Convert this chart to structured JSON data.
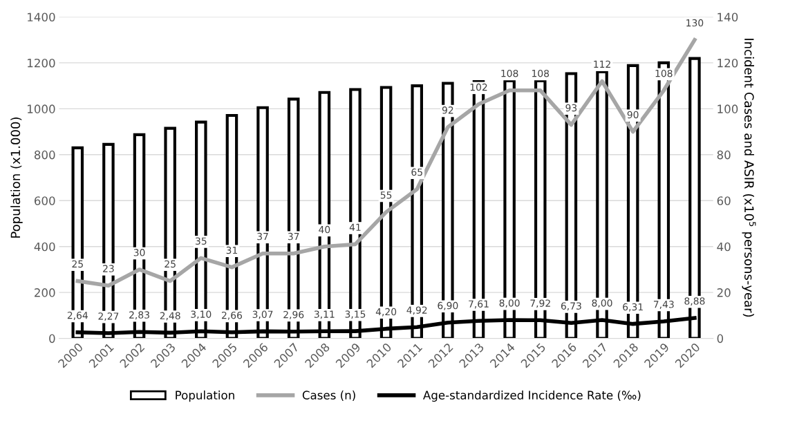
{
  "chart_data": {
    "type": "bar",
    "xlabel": null,
    "ylabel": "Population (x1.000)",
    "y2label": "Incident Cases and ASIR (x10$^{5}$ persons-year)",
    "categories": [
      "2000",
      "2001",
      "2002",
      "2003",
      "2004",
      "2005",
      "2006",
      "2007",
      "2008",
      "2009",
      "2010",
      "2011",
      "2012",
      "2013",
      "2014",
      "2015",
      "2016",
      "2017",
      "2018",
      "2019",
      "2020"
    ],
    "series": [
      {
        "name": "Population",
        "color": "#000000",
        "values": [
          830,
          845,
          887,
          915,
          942,
          971,
          1005,
          1042,
          1071,
          1084,
          1093,
          1100,
          1111,
          1118,
          1122,
          1122,
          1153,
          1161,
          1188,
          1200,
          1219
        ]
      },
      {
        "name": "Cases (n)",
        "type": "line",
        "axis": "y2",
        "color": "#a6a6a6",
        "values": [
          25,
          23,
          30,
          25,
          35,
          31,
          37,
          37,
          40,
          41,
          55,
          65,
          92,
          102,
          108,
          108,
          93,
          112,
          90,
          108,
          130
        ],
        "value_labels": [
          "25",
          "23",
          "30",
          "25",
          "35",
          "31",
          "37",
          "37",
          "40",
          "41",
          "55",
          "65",
          "92",
          "102",
          "108",
          "108",
          "93",
          "112",
          "90",
          "108",
          "130"
        ]
      },
      {
        "name": "Age-standardized Incidence Rate (‰)",
        "type": "line",
        "axis": "y2",
        "color": "#000000",
        "values": [
          2.64,
          2.27,
          2.83,
          2.48,
          3.1,
          2.66,
          3.07,
          2.96,
          3.11,
          3.15,
          4.2,
          4.92,
          6.9,
          7.61,
          8.0,
          7.92,
          6.73,
          8.0,
          6.31,
          7.43,
          8.88
        ],
        "value_labels": [
          "2,64",
          "2,27",
          "2,83",
          "2,48",
          "3,10",
          "2,66",
          "3,07",
          "2,96",
          "3,11",
          "3,15",
          "4,20",
          "4,92",
          "6,90",
          "7,61",
          "8,00",
          "7,92",
          "6,73",
          "8,00",
          "6,31",
          "7,43",
          "8,88"
        ]
      }
    ],
    "ylim": [
      0,
      1400
    ],
    "yticks": [
      0,
      200,
      400,
      600,
      800,
      1000,
      1200,
      1400
    ],
    "y2lim": [
      0,
      140
    ],
    "y2ticks": [
      0,
      20,
      40,
      60,
      80,
      100,
      120,
      140
    ],
    "grid": "y",
    "legend": "bottom",
    "line_style": "solid",
    "marker": "none"
  }
}
